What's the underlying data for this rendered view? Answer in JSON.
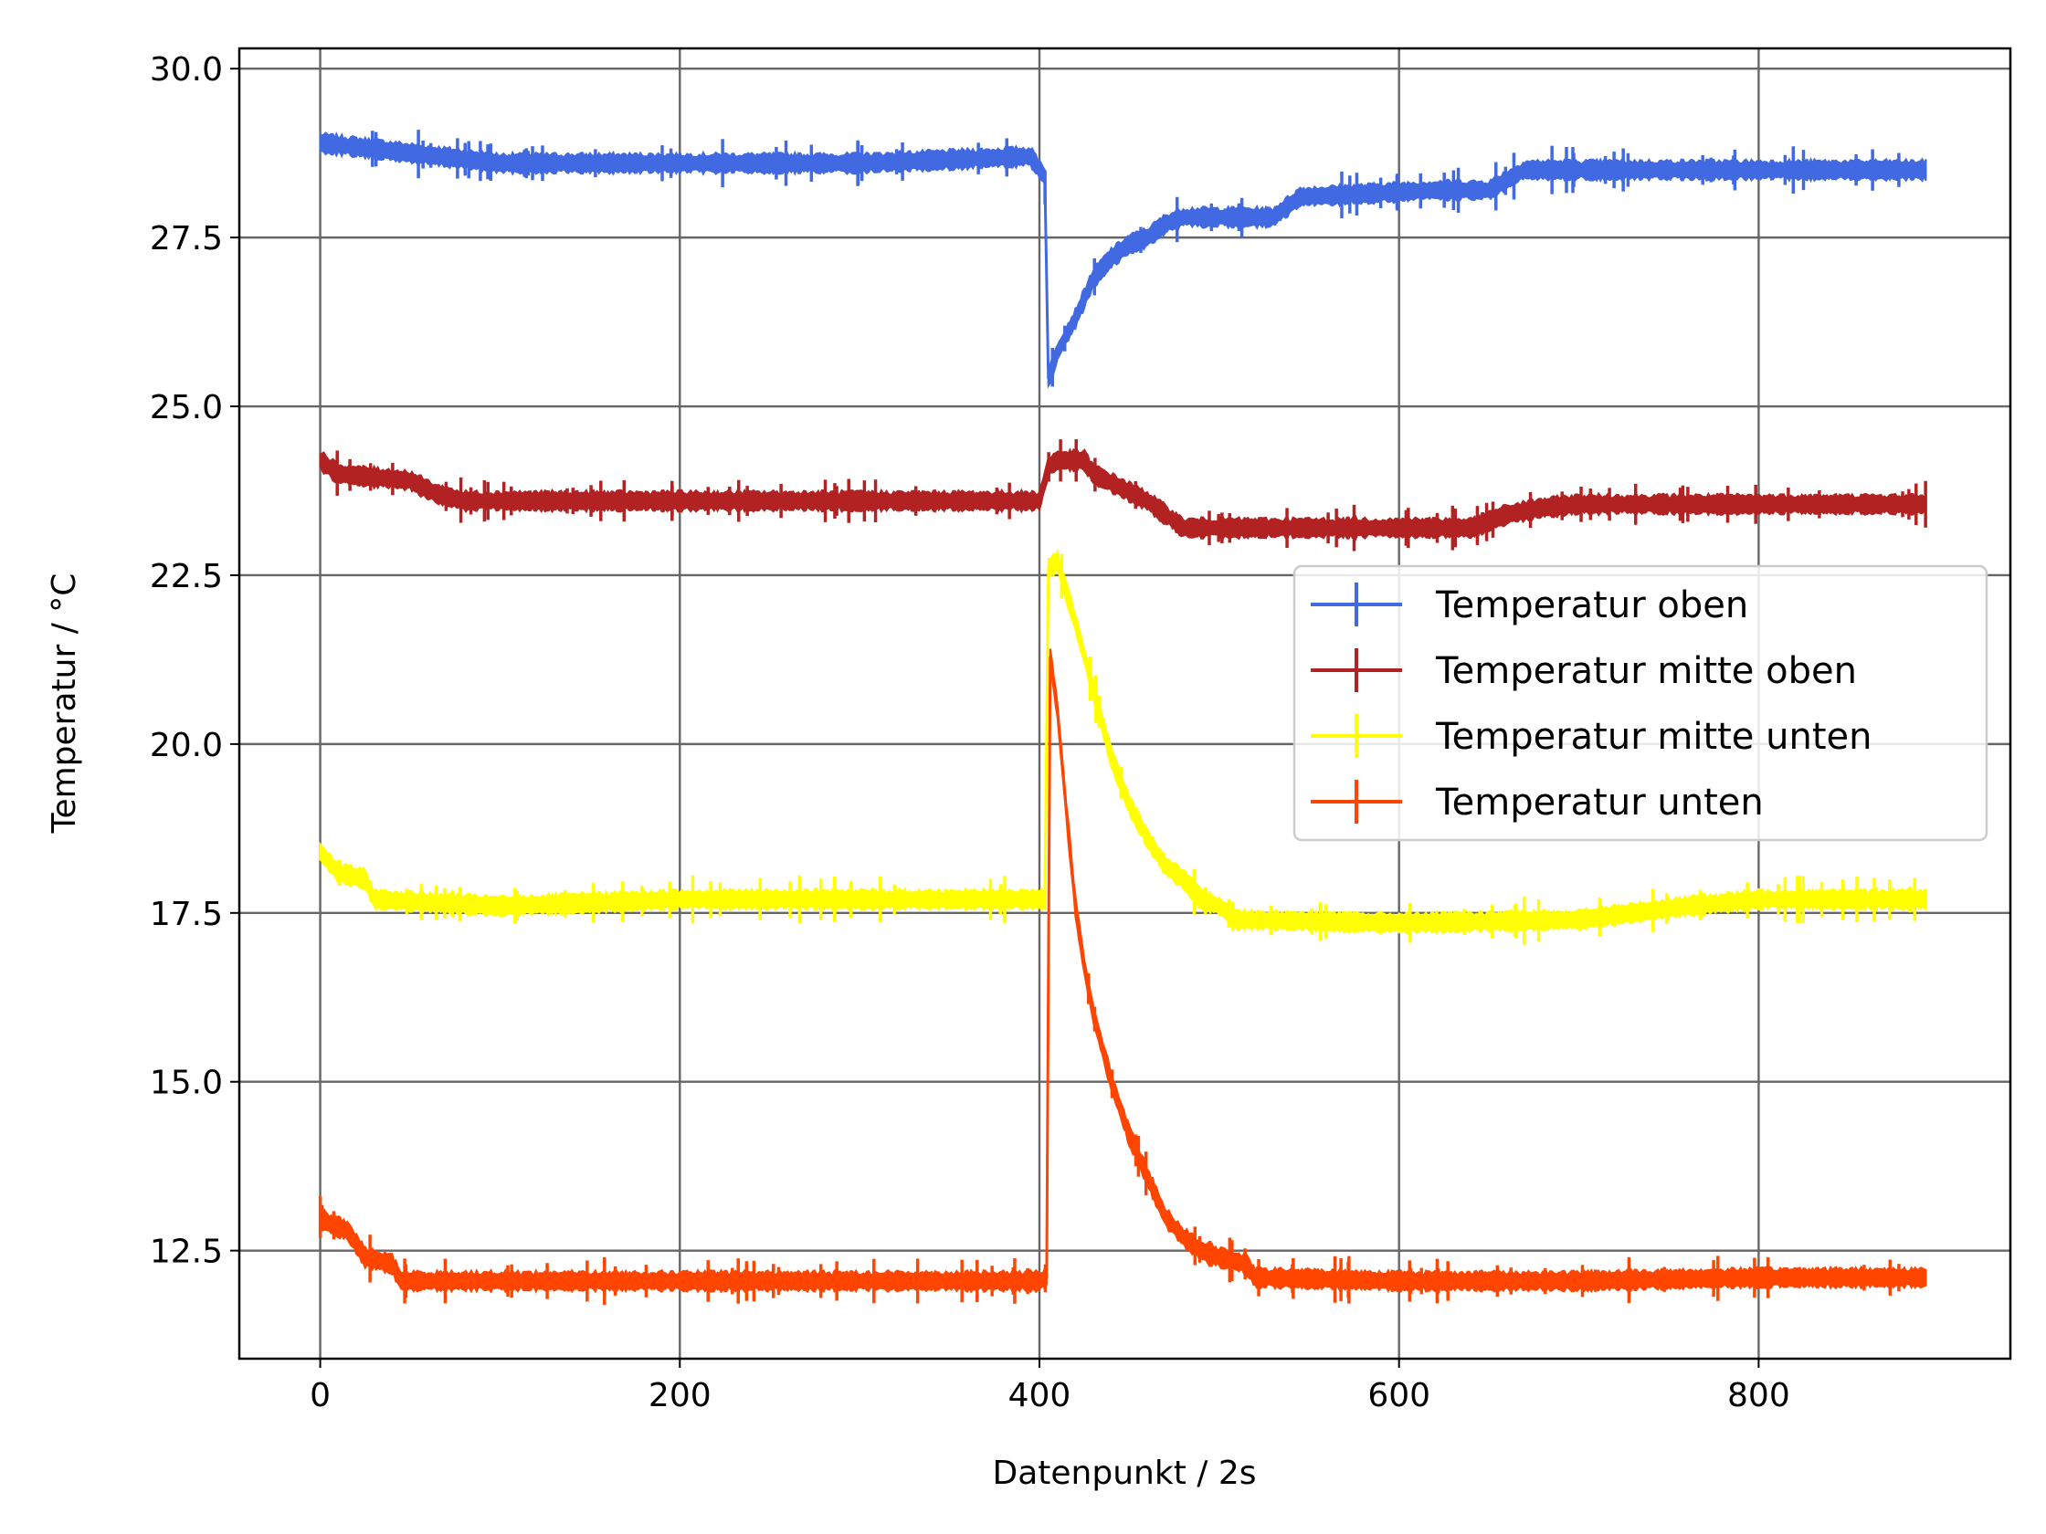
{
  "chart_data": {
    "type": "line",
    "title": "",
    "xlabel": "Datenpunkt / 2s",
    "ylabel": "Temperatur / °C",
    "xlim": [
      -45,
      940
    ],
    "ylim": [
      10.9,
      30.3
    ],
    "xticks": [
      0,
      200,
      400,
      600,
      800
    ],
    "yticks": [
      12.5,
      15.0,
      17.5,
      20.0,
      22.5,
      25.0,
      27.5,
      30.0
    ],
    "grid": true,
    "error_bars": true,
    "legend_position": "center-right",
    "series": [
      {
        "name": "Temperatur oben",
        "color": "#4169E1",
        "points": [
          [
            0,
            28.9
          ],
          [
            100,
            28.6
          ],
          [
            200,
            28.6
          ],
          [
            300,
            28.6
          ],
          [
            395,
            28.7
          ],
          [
            403,
            28.4
          ],
          [
            405,
            25.4
          ],
          [
            410,
            25.8
          ],
          [
            420,
            26.3
          ],
          [
            430,
            26.9
          ],
          [
            440,
            27.2
          ],
          [
            450,
            27.4
          ],
          [
            460,
            27.5
          ],
          [
            470,
            27.7
          ],
          [
            480,
            27.8
          ],
          [
            530,
            27.8
          ],
          [
            545,
            28.1
          ],
          [
            620,
            28.2
          ],
          [
            650,
            28.2
          ],
          [
            670,
            28.5
          ],
          [
            700,
            28.5
          ],
          [
            893,
            28.5
          ]
        ]
      },
      {
        "name": "Temperatur mitte oben",
        "color": "#B22222",
        "points": [
          [
            0,
            24.2
          ],
          [
            10,
            24.0
          ],
          [
            50,
            23.9
          ],
          [
            65,
            23.7
          ],
          [
            80,
            23.6
          ],
          [
            200,
            23.6
          ],
          [
            300,
            23.6
          ],
          [
            400,
            23.6
          ],
          [
            405,
            24.1
          ],
          [
            410,
            24.2
          ],
          [
            425,
            24.2
          ],
          [
            430,
            24.0
          ],
          [
            445,
            23.8
          ],
          [
            460,
            23.6
          ],
          [
            470,
            23.4
          ],
          [
            480,
            23.2
          ],
          [
            600,
            23.2
          ],
          [
            640,
            23.2
          ],
          [
            660,
            23.4
          ],
          [
            680,
            23.5
          ],
          [
            700,
            23.55
          ],
          [
            893,
            23.55
          ]
        ]
      },
      {
        "name": "Temperatur mitte unten",
        "color": "#FFFF00",
        "points": [
          [
            0,
            18.4
          ],
          [
            10,
            18.1
          ],
          [
            25,
            18.0
          ],
          [
            30,
            17.7
          ],
          [
            100,
            17.6
          ],
          [
            200,
            17.7
          ],
          [
            300,
            17.7
          ],
          [
            400,
            17.7
          ],
          [
            403,
            17.7
          ],
          [
            405,
            22.6
          ],
          [
            410,
            22.7
          ],
          [
            420,
            21.8
          ],
          [
            430,
            20.8
          ],
          [
            440,
            19.8
          ],
          [
            450,
            19.1
          ],
          [
            460,
            18.6
          ],
          [
            470,
            18.2
          ],
          [
            480,
            18.0
          ],
          [
            490,
            17.7
          ],
          [
            500,
            17.6
          ],
          [
            510,
            17.4
          ],
          [
            600,
            17.35
          ],
          [
            700,
            17.4
          ],
          [
            760,
            17.6
          ],
          [
            800,
            17.7
          ],
          [
            893,
            17.7
          ]
        ]
      },
      {
        "name": "Temperatur unten",
        "color": "#FF4500",
        "points": [
          [
            0,
            13.0
          ],
          [
            5,
            12.9
          ],
          [
            15,
            12.8
          ],
          [
            25,
            12.4
          ],
          [
            40,
            12.3
          ],
          [
            45,
            12.05
          ],
          [
            100,
            12.05
          ],
          [
            200,
            12.05
          ],
          [
            300,
            12.05
          ],
          [
            400,
            12.05
          ],
          [
            404,
            12.1
          ],
          [
            406,
            21.3
          ],
          [
            410,
            20.5
          ],
          [
            415,
            19.0
          ],
          [
            420,
            17.6
          ],
          [
            425,
            16.7
          ],
          [
            430,
            16.0
          ],
          [
            440,
            15.0
          ],
          [
            450,
            14.2
          ],
          [
            460,
            13.6
          ],
          [
            470,
            13.0
          ],
          [
            480,
            12.7
          ],
          [
            490,
            12.5
          ],
          [
            500,
            12.4
          ],
          [
            515,
            12.3
          ],
          [
            520,
            12.1
          ],
          [
            600,
            12.05
          ],
          [
            700,
            12.05
          ],
          [
            800,
            12.1
          ],
          [
            893,
            12.1
          ]
        ]
      }
    ]
  }
}
